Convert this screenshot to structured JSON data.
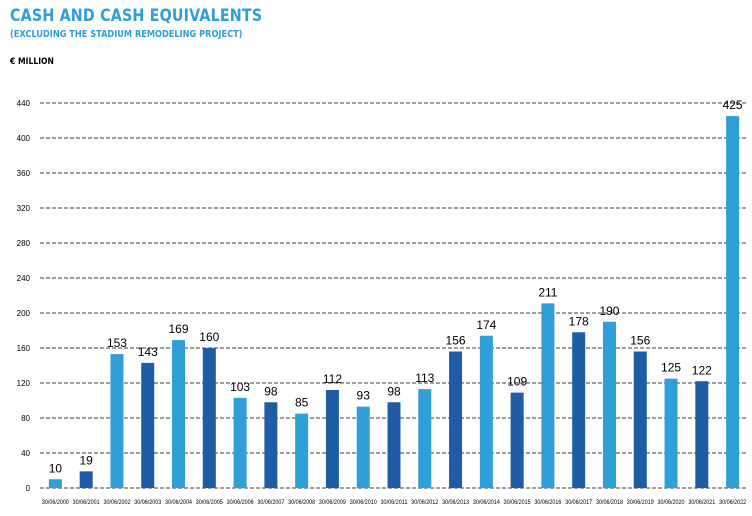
{
  "header": {
    "title": "CASH AND CASH EQUIVALENTS",
    "subtitle": "(EXCLUDING THE STADIUM REMODELING PROJECT)",
    "unit": "€ MILLION"
  },
  "colors": {
    "title": "#2f9fd8",
    "bar_light": "#2f9fd8",
    "bar_dark": "#1f5ca6",
    "gridline": "#000000"
  },
  "chart_data": {
    "type": "bar",
    "title": "CASH AND CASH EQUIVALENTS",
    "subtitle": "(EXCLUDING THE STADIUM REMODELING PROJECT)",
    "ylabel": "€ MILLION",
    "xlabel": "",
    "ylim": [
      0,
      440
    ],
    "yticks": [
      0,
      40,
      80,
      120,
      160,
      200,
      240,
      280,
      320,
      360,
      400,
      440
    ],
    "grid": "horizontal dashed",
    "legend": "none",
    "categories": [
      "30/06/2000",
      "30/06/2001",
      "30/06/2002",
      "30/06/2003",
      "30/06/2004",
      "30/06/2005",
      "30/06/2006",
      "30/06/2007",
      "30/06/2008",
      "30/06/2009",
      "30/06/2010",
      "30/06/2011",
      "30/06/2012",
      "30/06/2013",
      "30/06/2014",
      "30/06/2015",
      "30/06/2016",
      "30/06/2017",
      "30/06/2018",
      "30/06/2019",
      "30/06/2020",
      "30/06/2021",
      "30/06/2022"
    ],
    "values": [
      10,
      19,
      153,
      143,
      169,
      160,
      103,
      98,
      85,
      112,
      93,
      98,
      113,
      156,
      174,
      109,
      211,
      178,
      190,
      156,
      125,
      122,
      425
    ],
    "bar_colors": [
      "light",
      "dark",
      "light",
      "dark",
      "light",
      "dark",
      "light",
      "dark",
      "light",
      "dark",
      "light",
      "dark",
      "light",
      "dark",
      "light",
      "dark",
      "light",
      "dark",
      "light",
      "dark",
      "light",
      "dark",
      "light"
    ]
  }
}
